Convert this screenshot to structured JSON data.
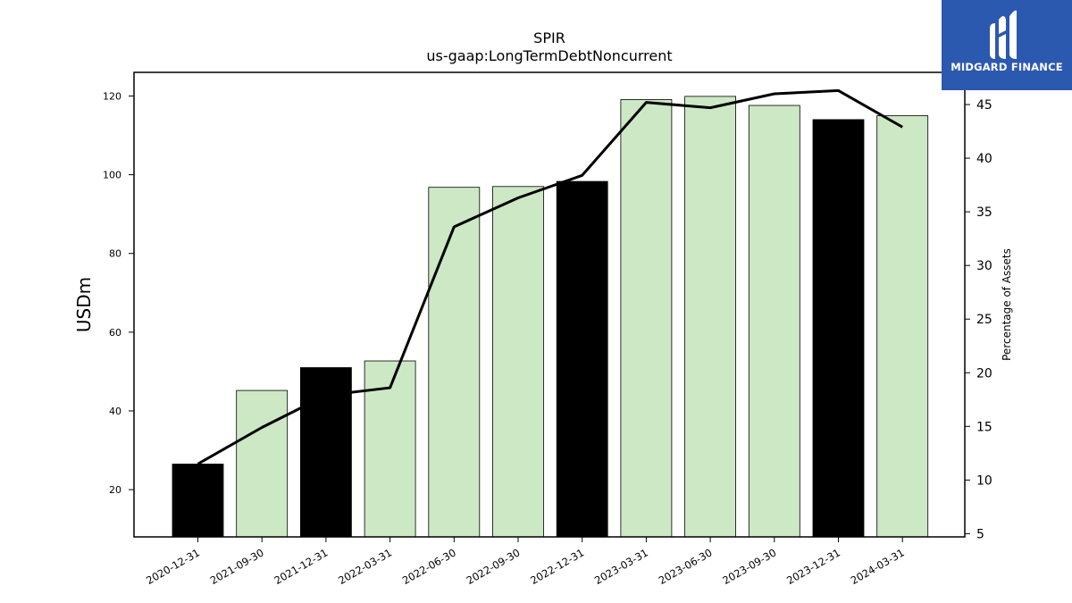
{
  "chart_data": {
    "type": "bar",
    "title": "SPIR",
    "subtitle": "us-gaap:LongTermDebtNoncurrent",
    "ylabel": "USDm",
    "y2label": "Percentage of Assets",
    "categories": [
      "2020-12-31",
      "2021-09-30",
      "2021-12-31",
      "2022-03-31",
      "2022-06-30",
      "2022-09-30",
      "2022-12-31",
      "2023-03-31",
      "2023-06-30",
      "2023-09-30",
      "2023-12-31",
      "2024-03-31"
    ],
    "series": [
      {
        "type": "bar",
        "axis": "left",
        "values": [
          26.5,
          45.2,
          51.0,
          52.7,
          96.8,
          97.0,
          98.3,
          119.1,
          119.9,
          117.6,
          114.0,
          115.0
        ],
        "highlight": [
          true,
          false,
          true,
          false,
          false,
          false,
          true,
          false,
          false,
          false,
          true,
          false
        ]
      },
      {
        "type": "line",
        "axis": "right",
        "values": [
          11.5,
          14.9,
          17.9,
          18.6,
          33.6,
          36.3,
          38.4,
          45.2,
          44.7,
          46.0,
          46.3,
          42.9
        ]
      }
    ],
    "ylim": [
      8,
      126
    ],
    "y2lim": [
      4.7,
      48.0
    ],
    "yticks": [
      20,
      40,
      60,
      80,
      100,
      120
    ],
    "y2ticks": [
      5,
      10,
      15,
      20,
      25,
      30,
      35,
      40,
      45
    ],
    "colors": {
      "bar_highlight": "#000000",
      "bar_normal": "#cce8c4",
      "bar_edge": "#000000",
      "line": "#000000"
    }
  },
  "logo": {
    "text": "MIDGARD FINANCE",
    "background": "#2c59b0"
  }
}
